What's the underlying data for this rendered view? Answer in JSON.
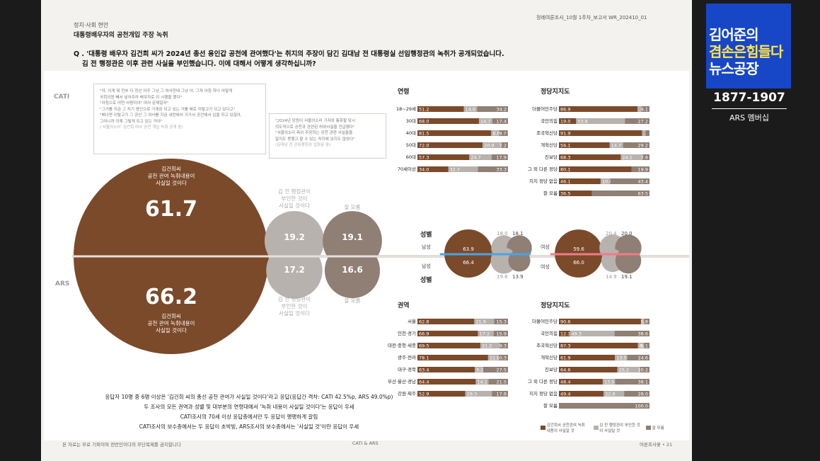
{
  "header": {
    "category": "정치·사회 현안",
    "title": "대통령배우자의 공천개입 주장 녹취",
    "report_id": "정례여론조사_10월 1주차_보고서 WR_202410_01"
  },
  "question": {
    "line1": "Q . '대통령 배우자 김건희 씨가 2024년 총선 용인갑 공천에 관여했다'는 취지의 주장이 담긴 김대남 전 대통령실 선임행정관의 녹취가 공개되었습니다.",
    "line2": "김 전 행정관은 이후 관련 사실을 부인했습니다. 이에 대해서 어떻게 생각하십니까?"
  },
  "modes": {
    "cati": "CATI",
    "ars": "ARS"
  },
  "quotes": {
    "q1": [
      "\"아, 이게 뭐 전부 다 정신 아주 그냥 그 여사한테 그냥 어, 그게 아침 하나 어떻게",
      "국회의원 빼서 넣어주라 배우자로 이 시행을 했다\"",
      "\"아침으로 어떤 사람이야\" 여사 문제일라\"",
      "\"그거를 지금 그 자기 용인으로 가게끔 되고 있는 거를 해로 이렇고가 되고 있다고\"",
      "\"배나면 이렇고가 그 공산 그 여사를 지금 내란에서 가가서 공간에서 입을 하고 있잖아,",
      "그러니까 이제 그렇게 되고 있는 거야\""
    ],
    "q1_src": "('서울의소리' 김건희 여사 공천 개입 녹취 공개 중)",
    "q2": [
      "\"2024년 당원이 서울의소리 기자와 통화할 당시",
      "의도적으로 공천과 관련된 허위사실을 언급했다\"",
      "\"서울의소리 측이 주장하는 공천 관련 사실들을",
      "알지도 못했고 할 수 있는 처지에 있지도 않았다\""
    ],
    "q2_src": "(김대남 전 선임행정관 입장문 중)"
  },
  "cati": {
    "main_value": "61.7",
    "main_label_1": "김건희씨",
    "main_label_2": "공천 관여 녹취내용이",
    "main_label_3": "사실일 것이다",
    "deny_value": "19.2",
    "deny_label_1": "김 전 행정관이",
    "deny_label_2": "부인한 것이",
    "deny_label_3": "사실일 것이다",
    "dk_value": "19.1",
    "dk_label": "잘 모름",
    "main_num": 61.7,
    "deny_num": 19.2,
    "dk_num": 19.1
  },
  "ars": {
    "main_value": "66.2",
    "main_label_1": "김건희씨",
    "main_label_2": "공천 관여 녹취내용이",
    "main_label_3": "사실일 것이다",
    "deny_value": "17.2",
    "deny_label_1": "김 전 행정관이",
    "deny_label_2": "부인한 것이",
    "deny_label_3": "사실일 것이다",
    "dk_value": "16.6",
    "dk_label": "잘 모름",
    "main_num": 66.2,
    "deny_num": 17.2,
    "dk_num": 16.6
  },
  "gender": {
    "title": "성별",
    "male": "남성",
    "female": "여성",
    "cati_male": [
      "63.9",
      "18.0",
      "18.1"
    ],
    "ars_male": [
      "66.4",
      "19.6",
      "13.9"
    ],
    "cati_female": [
      "59.6",
      "20.4",
      "20.0"
    ],
    "ars_female": [
      "66.0",
      "14.9",
      "19.1"
    ]
  },
  "summary": [
    "응답자 10명 중 6명 이상은 '김건희 씨의 총선 공천 관여가 사실일 것이다'라고 응답(응답간 격차: CATI 42.5%p, ARS 49.0%p)",
    "두 조사의 모든 권역과 성별 및 대부분의 연령대에서 '녹취 내용이 사실일 것이다'는 응답이 우세",
    "CATI조사의 70세 이상 응답층에서만 두 응답이 팽팽하게 갈림",
    "CATI조사의 보수층에서는 두 응답이 초박빙, ARS조사의 보수층에서는 '사실일 것'이란 응답이 우세"
  ],
  "legend": [
    "김건희씨 공천관여 녹취내용이 사실일 것",
    "김 전 행정관이 부인한 것이 사실일 것",
    "잘 모름"
  ],
  "footer": {
    "left": "본 자료는 무료 기획이며 전반인이다의 무단복제를 금지합니다",
    "center": "CATI & ARS",
    "right": "여론조사꽃 • 21"
  },
  "overlay": {
    "logo_line1": "김어준의",
    "logo_line2": "겸손은힘들다",
    "logo_line3": "뉴스공장",
    "number": "1877-1907",
    "caption": "ARS 멤버십"
  },
  "colors": {
    "brown": "#7b4a2a",
    "grey": "#b7b2ae",
    "taupe": "#8f7f74"
  },
  "chart_data": [
    {
      "type": "bar",
      "title": "연령",
      "stacked": true,
      "categories": [
        "18~29세",
        "30대",
        "40대",
        "50대",
        "60대",
        "70세이상"
      ],
      "series": [
        {
          "values": [
            51.2,
            68.0,
            81.5,
            72.0,
            57.3,
            34.0
          ]
        },
        {
          "values": [
            14.6,
            14.7,
            8.6,
            20.9,
            24.7,
            32.7
          ]
        },
        {
          "values": [
            34.2,
            17.4,
            9.7,
            7.2,
            17.9,
            33.3
          ]
        }
      ]
    },
    {
      "type": "bar",
      "title": "정당지지도",
      "stacked": true,
      "categories": [
        "더불어민주당",
        "국민의힘",
        "조국혁신당",
        "개혁신당",
        "진보당",
        "그 외 다른 정당",
        "지지 정당 없음",
        "잘 모름"
      ],
      "series": [
        {
          "values": [
            86.9,
            19.0,
            91.9,
            56.1,
            68.3,
            80.1,
            46.1,
            36.5
          ]
        },
        {
          "values": [
            4.0,
            53.8,
            3.8,
            14.7,
            24.1,
            0.0,
            10.6,
            0.0
          ]
        },
        {
          "values": [
            9.1,
            27.2,
            4.3,
            29.2,
            7.6,
            19.9,
            43.4,
            63.5
          ]
        }
      ]
    },
    {
      "type": "bar",
      "title": "권역",
      "stacked": true,
      "categories": [
        "서울",
        "인천·경기",
        "대전·충청·세종",
        "광주·전라",
        "대구·경북",
        "부산·울산·경남",
        "강원·제주"
      ],
      "series": [
        {
          "values": [
            62.8,
            66.9,
            69.5,
            78.1,
            63.4,
            64.4,
            52.9
          ]
        },
        {
          "values": [
            21.9,
            17.2,
            21.2,
            11.7,
            9.2,
            14.1,
            29.3
          ]
        },
        {
          "values": [
            15.3,
            15.9,
            9.3,
            10.3,
            27.5,
            21.5,
            17.8
          ]
        }
      ]
    },
    {
      "type": "bar",
      "title": "정당지지도",
      "stacked": true,
      "categories": [
        "더불어민주당",
        "국민의힘",
        "조국혁신당",
        "개혁신당",
        "진보당",
        "그 외 다른 정당",
        "지지 정당 없음",
        "잘 모름"
      ],
      "series": [
        {
          "values": [
            90.6,
            12.1,
            87.3,
            61.9,
            64.6,
            48.4,
            49.4,
            0.0
          ]
        },
        {
          "values": [
            3.6,
            49.3,
            6.6,
            13.5,
            25.2,
            13.5,
            22.6,
            0.0
          ]
        },
        {
          "values": [
            5.8,
            38.6,
            6.1,
            24.6,
            10.2,
            38.1,
            28.0,
            100.0
          ]
        }
      ]
    }
  ]
}
